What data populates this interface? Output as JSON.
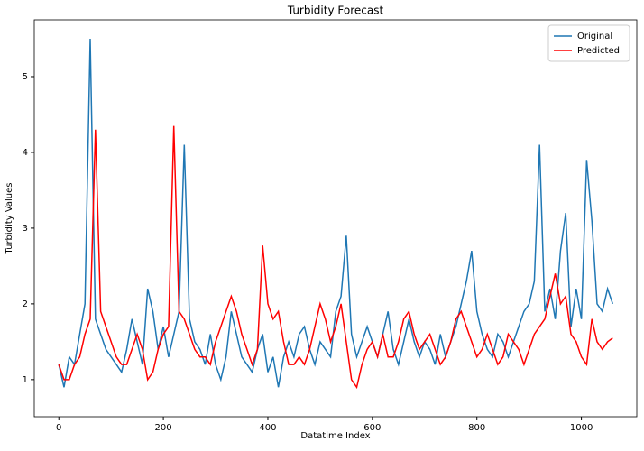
{
  "chart_data": {
    "type": "line",
    "title": "Turbidity Forecast",
    "x_label": "Datatime Index",
    "y_label": "Turbidity Values",
    "x": [
      0,
      10,
      20,
      30,
      40,
      50,
      60,
      70,
      80,
      90,
      100,
      110,
      120,
      130,
      140,
      150,
      160,
      170,
      180,
      190,
      200,
      210,
      220,
      230,
      240,
      250,
      260,
      270,
      280,
      290,
      300,
      310,
      320,
      330,
      340,
      350,
      360,
      370,
      380,
      390,
      400,
      410,
      420,
      430,
      440,
      450,
      460,
      470,
      480,
      490,
      500,
      510,
      520,
      530,
      540,
      550,
      560,
      570,
      580,
      590,
      600,
      610,
      620,
      630,
      640,
      650,
      660,
      670,
      680,
      690,
      700,
      710,
      720,
      730,
      740,
      750,
      760,
      770,
      780,
      790,
      800,
      810,
      820,
      830,
      840,
      850,
      860,
      870,
      880,
      890,
      900,
      910,
      920,
      930,
      940,
      950,
      960,
      970,
      980,
      990,
      1000,
      1010,
      1020,
      1030,
      1040,
      1050,
      1060
    ],
    "series": [
      {
        "name": "Original",
        "color": "#1f77b4",
        "values": [
          1.2,
          0.9,
          1.3,
          1.2,
          1.6,
          2.0,
          5.5,
          1.8,
          1.6,
          1.4,
          1.3,
          1.2,
          1.1,
          1.4,
          1.8,
          1.5,
          1.2,
          2.2,
          1.9,
          1.4,
          1.7,
          1.3,
          1.6,
          1.9,
          4.1,
          1.8,
          1.5,
          1.4,
          1.2,
          1.6,
          1.2,
          1.0,
          1.3,
          1.9,
          1.6,
          1.3,
          1.2,
          1.1,
          1.4,
          1.6,
          1.1,
          1.3,
          0.9,
          1.3,
          1.5,
          1.3,
          1.6,
          1.7,
          1.4,
          1.2,
          1.5,
          1.4,
          1.3,
          1.9,
          2.1,
          2.9,
          1.6,
          1.3,
          1.5,
          1.7,
          1.5,
          1.3,
          1.6,
          1.9,
          1.4,
          1.2,
          1.5,
          1.8,
          1.5,
          1.3,
          1.5,
          1.4,
          1.2,
          1.6,
          1.3,
          1.5,
          1.7,
          2.0,
          2.3,
          2.7,
          1.9,
          1.6,
          1.4,
          1.3,
          1.6,
          1.5,
          1.3,
          1.5,
          1.7,
          1.9,
          2.0,
          2.3,
          4.1,
          1.9,
          2.2,
          1.8,
          2.7,
          3.2,
          1.7,
          2.2,
          1.8,
          3.9,
          3.1,
          2.0,
          1.9,
          2.2,
          2.0
        ]
      },
      {
        "name": "Predicted",
        "color": "#ff0000",
        "values": [
          1.2,
          1.0,
          1.0,
          1.2,
          1.3,
          1.6,
          1.8,
          4.3,
          1.9,
          1.7,
          1.5,
          1.3,
          1.2,
          1.2,
          1.4,
          1.6,
          1.4,
          1.0,
          1.1,
          1.4,
          1.6,
          1.7,
          4.35,
          1.9,
          1.8,
          1.6,
          1.4,
          1.3,
          1.3,
          1.2,
          1.5,
          1.7,
          1.9,
          2.1,
          1.9,
          1.6,
          1.4,
          1.2,
          1.4,
          2.77,
          2.0,
          1.8,
          1.9,
          1.5,
          1.2,
          1.2,
          1.3,
          1.2,
          1.4,
          1.7,
          2.0,
          1.8,
          1.5,
          1.7,
          2.0,
          1.5,
          1.0,
          0.9,
          1.2,
          1.4,
          1.5,
          1.3,
          1.6,
          1.3,
          1.3,
          1.5,
          1.8,
          1.9,
          1.6,
          1.4,
          1.5,
          1.6,
          1.4,
          1.2,
          1.3,
          1.5,
          1.8,
          1.9,
          1.7,
          1.5,
          1.3,
          1.4,
          1.6,
          1.4,
          1.2,
          1.3,
          1.6,
          1.5,
          1.4,
          1.2,
          1.4,
          1.6,
          1.7,
          1.8,
          2.1,
          2.4,
          2.0,
          2.1,
          1.6,
          1.5,
          1.3,
          1.2,
          1.8,
          1.5,
          1.4,
          1.5,
          1.55
        ]
      }
    ],
    "xlim": [
      -47,
      1106
    ],
    "ylim": [
      0.51,
      5.75
    ],
    "xticks": [
      0,
      200,
      400,
      600,
      800,
      1000
    ],
    "yticks": [
      1,
      2,
      3,
      4,
      5
    ],
    "legend": "upper right"
  }
}
